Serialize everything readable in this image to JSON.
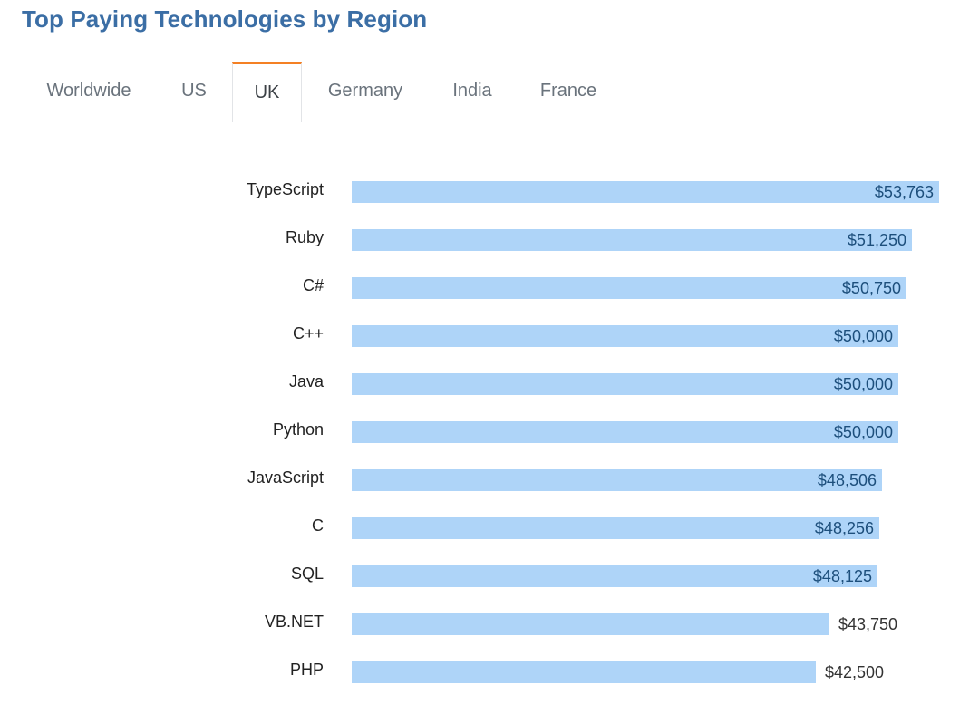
{
  "title": "Top Paying Technologies by Region",
  "tabs": [
    {
      "label": "Worldwide",
      "active": false
    },
    {
      "label": "US",
      "active": false
    },
    {
      "label": "UK",
      "active": true
    },
    {
      "label": "Germany",
      "active": false
    },
    {
      "label": "India",
      "active": false
    },
    {
      "label": "France",
      "active": false
    }
  ],
  "colors": {
    "title": "#3b6ea5",
    "active_tab_border": "#f48024",
    "bar": "#aed4f8",
    "value_label": "#1d4f7c"
  },
  "chart_data": {
    "type": "bar",
    "orientation": "horizontal",
    "title": "",
    "xlabel": "",
    "ylabel": "",
    "grid": false,
    "categories": [
      "TypeScript",
      "Ruby",
      "C#",
      "C++",
      "Java",
      "Python",
      "JavaScript",
      "C",
      "SQL",
      "VB.NET",
      "PHP"
    ],
    "values": [
      53763,
      51250,
      50750,
      50000,
      50000,
      50000,
      48506,
      48256,
      48125,
      43750,
      42500
    ],
    "value_labels": [
      "$53,763",
      "$51,250",
      "$50,750",
      "$50,000",
      "$50,000",
      "$50,000",
      "$48,506",
      "$48,256",
      "$48,125",
      "$43,750",
      "$42,500"
    ],
    "xlim": [
      0,
      53763
    ]
  }
}
